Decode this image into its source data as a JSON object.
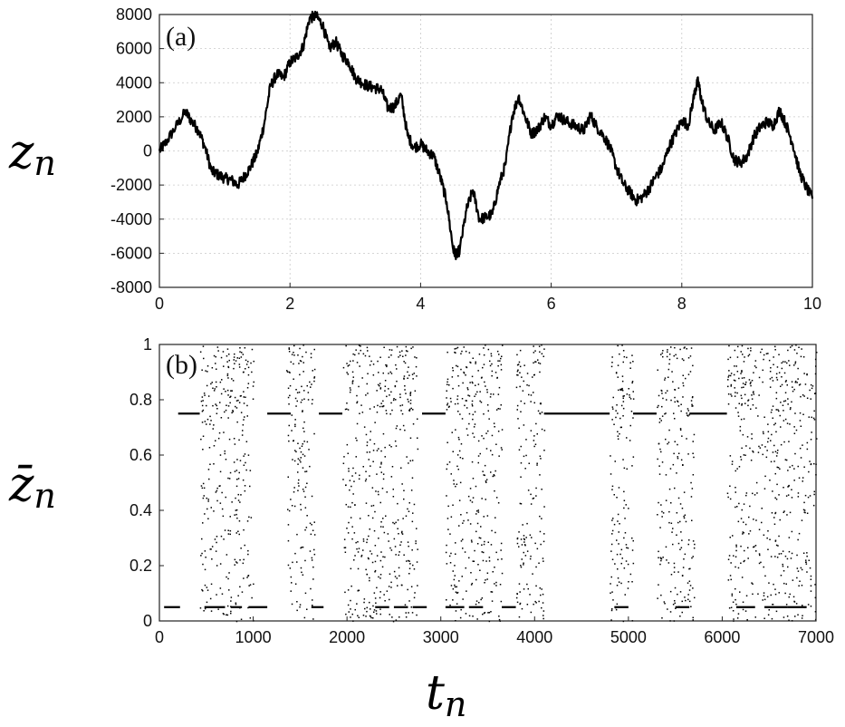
{
  "chart_data": [
    {
      "type": "line",
      "panel_label": "(a)",
      "ylabel": "z",
      "ylabel_sub": "n",
      "xlim": [
        0,
        10
      ],
      "ylim": [
        -8000,
        8000
      ],
      "x_ticks": [
        0,
        2,
        4,
        6,
        8,
        10
      ],
      "y_ticks": [
        8000,
        6000,
        4000,
        2000,
        0,
        -2000,
        -4000,
        -6000,
        -8000
      ],
      "grid": true,
      "series": [
        {
          "x": [
            0,
            0.1,
            0.25,
            0.4,
            0.5,
            0.6,
            0.7,
            0.8,
            0.9,
            1.0,
            1.1,
            1.2,
            1.3,
            1.4,
            1.5,
            1.6,
            1.7,
            1.8,
            1.9,
            2.0,
            2.1,
            2.2,
            2.3,
            2.4,
            2.5,
            2.6,
            2.7,
            2.8,
            2.9,
            3.0,
            3.1,
            3.2,
            3.3,
            3.4,
            3.5,
            3.6,
            3.7,
            3.8,
            3.9,
            4.0,
            4.1,
            4.2,
            4.3,
            4.4,
            4.5,
            4.55,
            4.6,
            4.7,
            4.8,
            4.9,
            5.0,
            5.1,
            5.2,
            5.3,
            5.4,
            5.5,
            5.6,
            5.7,
            5.8,
            5.9,
            6.0,
            6.1,
            6.2,
            6.3,
            6.4,
            6.5,
            6.6,
            6.7,
            6.8,
            6.9,
            7.0,
            7.1,
            7.2,
            7.3,
            7.4,
            7.5,
            7.6,
            7.7,
            7.8,
            7.9,
            8.0,
            8.1,
            8.2,
            8.25,
            8.3,
            8.4,
            8.5,
            8.6,
            8.7,
            8.8,
            8.9,
            9.0,
            9.1,
            9.2,
            9.3,
            9.4,
            9.5,
            9.6,
            9.7,
            9.8,
            9.9,
            10.0
          ],
          "y": [
            0,
            500,
            1400,
            2300,
            1700,
            1200,
            200,
            -1200,
            -1400,
            -1600,
            -1700,
            -2000,
            -1500,
            -900,
            -100,
            1500,
            3800,
            4500,
            4300,
            5200,
            5500,
            6100,
            7800,
            7900,
            7400,
            6000,
            6400,
            5600,
            5200,
            4300,
            4000,
            3800,
            3700,
            3600,
            2500,
            2600,
            3300,
            900,
            200,
            400,
            0,
            -300,
            -1500,
            -3000,
            -5800,
            -6100,
            -5800,
            -3500,
            -2300,
            -4000,
            -3900,
            -3700,
            -2000,
            -800,
            2000,
            3200,
            2000,
            1000,
            1300,
            2000,
            1500,
            2100,
            1800,
            1600,
            1400,
            1200,
            2100,
            1400,
            900,
            200,
            -1000,
            -1900,
            -2400,
            -2900,
            -2700,
            -2200,
            -1500,
            -1000,
            200,
            1000,
            1800,
            1500,
            3500,
            4100,
            3000,
            1700,
            1200,
            1700,
            800,
            -500,
            -700,
            -300,
            800,
            1400,
            1700,
            1500,
            2400,
            1500,
            400,
            -1200,
            -2100,
            -2800
          ]
        }
      ]
    },
    {
      "type": "scatter",
      "panel_label": "(b)",
      "ylabel": "z̄",
      "ylabel_sub": "n",
      "xlabel": "t",
      "xlabel_sub": "n",
      "xlim": [
        0,
        7000
      ],
      "ylim": [
        0,
        1
      ],
      "x_ticks": [
        0,
        1000,
        2000,
        3000,
        4000,
        5000,
        6000,
        7000
      ],
      "y_ticks": [
        1,
        0.8,
        0.6,
        0.4,
        0.2,
        0
      ],
      "grid": false,
      "plateau_value_high": 0.75,
      "plateau_value_low": 0.05,
      "plateaus_high": [
        [
          200,
          430
        ],
        [
          1150,
          1400
        ],
        [
          1700,
          1950
        ],
        [
          2800,
          3050
        ],
        [
          4100,
          4800
        ],
        [
          5050,
          5300
        ],
        [
          5650,
          6050
        ]
      ],
      "plateaus_low": [
        [
          50,
          220
        ],
        [
          480,
          700
        ],
        [
          760,
          880
        ],
        [
          950,
          1150
        ],
        [
          1620,
          1750
        ],
        [
          2300,
          2450
        ],
        [
          2500,
          2650
        ],
        [
          2700,
          2850
        ],
        [
          3050,
          3250
        ],
        [
          3300,
          3450
        ],
        [
          3650,
          3800
        ],
        [
          4850,
          5000
        ],
        [
          5500,
          5650
        ],
        [
          6150,
          6350
        ],
        [
          6450,
          6700
        ],
        [
          6700,
          6900
        ]
      ],
      "burst_intervals": [
        [
          430,
          1000
        ],
        [
          1350,
          1650
        ],
        [
          1950,
          2450
        ],
        [
          2450,
          2750
        ],
        [
          3050,
          3450
        ],
        [
          3450,
          3650
        ],
        [
          3800,
          4100
        ],
        [
          4800,
          5050
        ],
        [
          5300,
          5500
        ],
        [
          5500,
          5700
        ],
        [
          6050,
          6450
        ],
        [
          6450,
          7000
        ]
      ]
    }
  ]
}
